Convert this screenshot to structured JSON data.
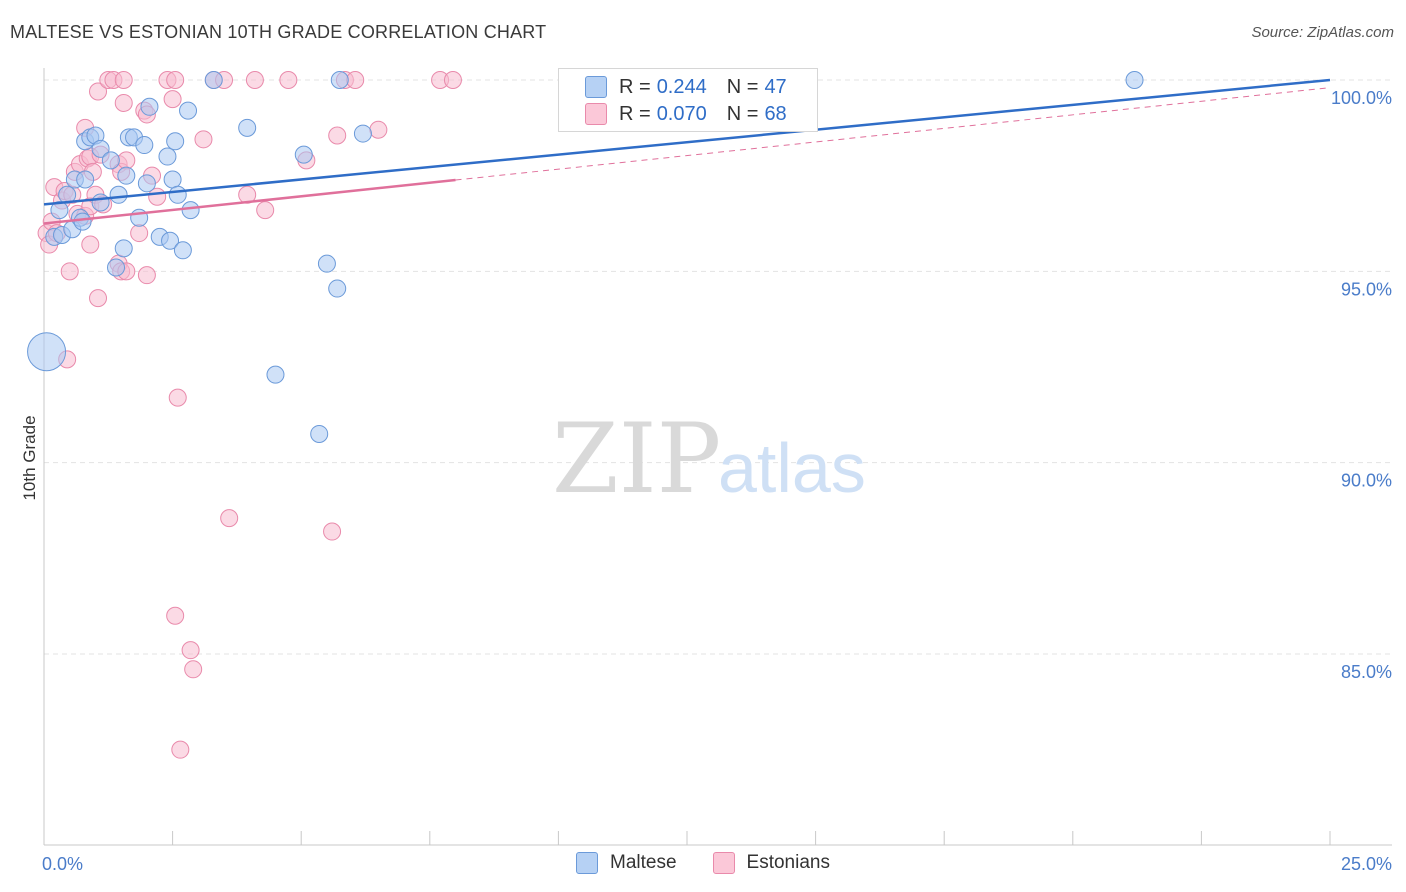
{
  "title": "MALTESE VS ESTONIAN 10TH GRADE CORRELATION CHART",
  "source": "Source: ZipAtlas.com",
  "watermark": {
    "zip": "ZIP",
    "atlas": "atlas"
  },
  "colors": {
    "maltese_fill": "#a9c9f2",
    "maltese_stroke": "#6b9ad9",
    "maltese_line": "#2f6dc7",
    "estonians_fill": "#f8bcd0",
    "estonians_stroke": "#e98aab",
    "estonians_line": "#e0709b",
    "tick_label": "#4a7cc9"
  },
  "legend": {
    "rows": [
      {
        "r_label": "R =",
        "r_value": "0.244",
        "n_label": "N =",
        "n_value": "47"
      },
      {
        "r_label": "R =",
        "r_value": "0.070",
        "n_label": "N =",
        "n_value": "68"
      }
    ]
  },
  "bottom_legend": [
    "Maltese",
    "Estonians"
  ],
  "chart_data": {
    "type": "scatter",
    "ylabel": "10th Grade",
    "xlim": [
      0,
      25
    ],
    "ylim": [
      80.5,
      100.8
    ],
    "y_ticks": [
      {
        "v": 100,
        "label": "100.0%"
      },
      {
        "v": 95,
        "label": "95.0%"
      },
      {
        "v": 90,
        "label": "90.0%"
      },
      {
        "v": 85,
        "label": "85.0%"
      }
    ],
    "x_tick_labels": [
      {
        "v": 0,
        "label": "0.0%"
      },
      {
        "v": 25,
        "label": "25.0%"
      }
    ],
    "x_minor_ticks": [
      2.5,
      5,
      7.5,
      10,
      12.5,
      15,
      17.5,
      20,
      22.5,
      25
    ],
    "legend_position": "top-center",
    "grid": true,
    "series": [
      {
        "name": "Maltese",
        "trend": {
          "x0": 0,
          "y0": 96.75,
          "x1": 25,
          "y1": 100.0,
          "solid_to": 25
        },
        "points": [
          {
            "x": 0.05,
            "y": 92.9,
            "big": true
          },
          {
            "x": 0.2,
            "y": 95.9
          },
          {
            "x": 0.3,
            "y": 96.6
          },
          {
            "x": 0.35,
            "y": 95.95
          },
          {
            "x": 0.45,
            "y": 97.0
          },
          {
            "x": 0.55,
            "y": 96.1
          },
          {
            "x": 0.6,
            "y": 97.4
          },
          {
            "x": 0.7,
            "y": 96.4
          },
          {
            "x": 0.8,
            "y": 97.4
          },
          {
            "x": 0.75,
            "y": 96.3
          },
          {
            "x": 0.8,
            "y": 98.4
          },
          {
            "x": 0.9,
            "y": 98.5
          },
          {
            "x": 1.0,
            "y": 98.55
          },
          {
            "x": 1.1,
            "y": 96.8
          },
          {
            "x": 1.1,
            "y": 98.2
          },
          {
            "x": 1.3,
            "y": 97.9
          },
          {
            "x": 1.4,
            "y": 95.1
          },
          {
            "x": 1.45,
            "y": 97.0
          },
          {
            "x": 1.55,
            "y": 95.6
          },
          {
            "x": 1.6,
            "y": 97.5
          },
          {
            "x": 1.65,
            "y": 98.5
          },
          {
            "x": 1.75,
            "y": 98.5
          },
          {
            "x": 1.85,
            "y": 96.4
          },
          {
            "x": 1.95,
            "y": 98.3
          },
          {
            "x": 2.0,
            "y": 97.3
          },
          {
            "x": 2.05,
            "y": 99.3
          },
          {
            "x": 2.25,
            "y": 95.9
          },
          {
            "x": 2.4,
            "y": 98.0
          },
          {
            "x": 2.45,
            "y": 95.8
          },
          {
            "x": 2.5,
            "y": 97.4
          },
          {
            "x": 2.55,
            "y": 98.4
          },
          {
            "x": 2.6,
            "y": 97.0
          },
          {
            "x": 2.7,
            "y": 95.55
          },
          {
            "x": 2.8,
            "y": 99.2
          },
          {
            "x": 2.85,
            "y": 96.6
          },
          {
            "x": 3.3,
            "y": 100.0
          },
          {
            "x": 3.95,
            "y": 98.75
          },
          {
            "x": 4.5,
            "y": 92.3
          },
          {
            "x": 5.05,
            "y": 98.05
          },
          {
            "x": 5.35,
            "y": 90.75
          },
          {
            "x": 5.5,
            "y": 95.2
          },
          {
            "x": 5.7,
            "y": 94.55
          },
          {
            "x": 5.75,
            "y": 100.0
          },
          {
            "x": 6.2,
            "y": 98.6
          },
          {
            "x": 21.2,
            "y": 100.0
          }
        ]
      },
      {
        "name": "Estonians",
        "trend": {
          "x0": 0,
          "y0": 96.25,
          "x1": 25,
          "y1": 99.8,
          "solid_to": 8.0
        },
        "points": [
          {
            "x": 0.05,
            "y": 96.0
          },
          {
            "x": 0.1,
            "y": 95.7
          },
          {
            "x": 0.15,
            "y": 96.3
          },
          {
            "x": 0.2,
            "y": 97.2
          },
          {
            "x": 0.25,
            "y": 96.0
          },
          {
            "x": 0.35,
            "y": 96.85
          },
          {
            "x": 0.4,
            "y": 97.1
          },
          {
            "x": 0.5,
            "y": 95.0
          },
          {
            "x": 0.45,
            "y": 92.7
          },
          {
            "x": 0.55,
            "y": 97.0
          },
          {
            "x": 0.6,
            "y": 97.6
          },
          {
            "x": 0.65,
            "y": 96.5
          },
          {
            "x": 0.7,
            "y": 97.8
          },
          {
            "x": 0.8,
            "y": 96.45
          },
          {
            "x": 0.85,
            "y": 97.95
          },
          {
            "x": 0.9,
            "y": 96.7
          },
          {
            "x": 0.8,
            "y": 98.75
          },
          {
            "x": 0.9,
            "y": 98.0
          },
          {
            "x": 0.9,
            "y": 95.7
          },
          {
            "x": 0.95,
            "y": 97.6
          },
          {
            "x": 1.0,
            "y": 97.0
          },
          {
            "x": 1.05,
            "y": 99.7
          },
          {
            "x": 1.1,
            "y": 98.05
          },
          {
            "x": 1.05,
            "y": 94.3
          },
          {
            "x": 1.15,
            "y": 96.75
          },
          {
            "x": 1.25,
            "y": 100.0
          },
          {
            "x": 1.35,
            "y": 100.0
          },
          {
            "x": 1.45,
            "y": 97.8
          },
          {
            "x": 1.5,
            "y": 97.6
          },
          {
            "x": 1.45,
            "y": 95.2
          },
          {
            "x": 1.5,
            "y": 95.0
          },
          {
            "x": 1.6,
            "y": 95.0
          },
          {
            "x": 1.55,
            "y": 100.0
          },
          {
            "x": 1.55,
            "y": 99.4
          },
          {
            "x": 1.6,
            "y": 97.9
          },
          {
            "x": 1.85,
            "y": 96.0
          },
          {
            "x": 1.95,
            "y": 99.2
          },
          {
            "x": 2.0,
            "y": 99.1
          },
          {
            "x": 2.0,
            "y": 94.9
          },
          {
            "x": 2.1,
            "y": 97.5
          },
          {
            "x": 2.2,
            "y": 96.95
          },
          {
            "x": 2.4,
            "y": 100.0
          },
          {
            "x": 2.5,
            "y": 99.5
          },
          {
            "x": 2.55,
            "y": 100.0
          },
          {
            "x": 2.6,
            "y": 91.7
          },
          {
            "x": 2.55,
            "y": 86.0
          },
          {
            "x": 2.65,
            "y": 82.5
          },
          {
            "x": 2.85,
            "y": 85.1
          },
          {
            "x": 2.9,
            "y": 84.6
          },
          {
            "x": 3.1,
            "y": 98.45
          },
          {
            "x": 3.3,
            "y": 100.0
          },
          {
            "x": 3.5,
            "y": 100.0
          },
          {
            "x": 3.6,
            "y": 88.55
          },
          {
            "x": 3.95,
            "y": 97.0
          },
          {
            "x": 4.1,
            "y": 100.0
          },
          {
            "x": 4.3,
            "y": 96.6
          },
          {
            "x": 4.75,
            "y": 100.0
          },
          {
            "x": 5.1,
            "y": 97.9
          },
          {
            "x": 5.6,
            "y": 88.2
          },
          {
            "x": 5.7,
            "y": 98.55
          },
          {
            "x": 5.85,
            "y": 100.0
          },
          {
            "x": 6.05,
            "y": 100.0
          },
          {
            "x": 6.5,
            "y": 98.7
          },
          {
            "x": 7.7,
            "y": 100.0
          },
          {
            "x": 7.95,
            "y": 100.0
          }
        ]
      }
    ]
  }
}
